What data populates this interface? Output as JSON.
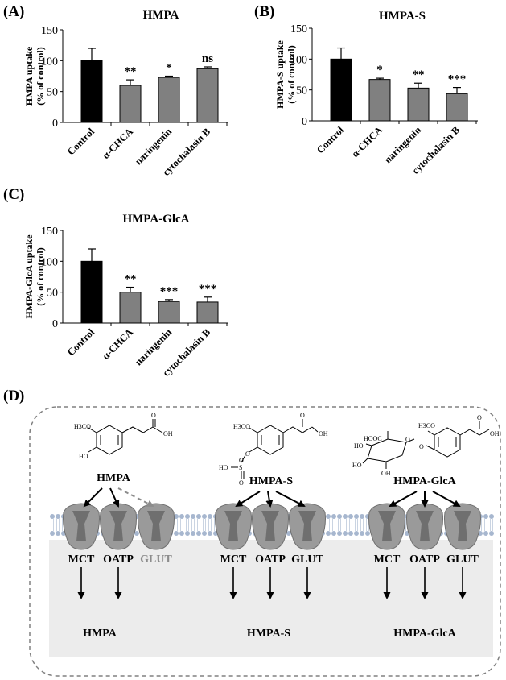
{
  "panels": {
    "A": "(A)",
    "B": "(B)",
    "C": "(C)",
    "D": "(D)"
  },
  "chart_data": [
    {
      "type": "bar",
      "title": "HMPA",
      "ylabel": "HMPA uptake",
      "ylabel2": "(% of control)",
      "ylim": [
        0,
        150
      ],
      "yticks": [
        0,
        50,
        100,
        150
      ],
      "categories": [
        "Control",
        "α-CHCA",
        "naringenin",
        "cytochalasin B"
      ],
      "values": [
        100,
        60,
        73,
        87
      ],
      "errors": [
        20,
        9,
        2,
        3
      ],
      "significance": [
        "",
        "**",
        "*",
        "ns"
      ],
      "colors": [
        "#000000",
        "#808080",
        "#808080",
        "#808080"
      ]
    },
    {
      "type": "bar",
      "title": "HMPA-S",
      "ylabel": "HMPA-S uptake",
      "ylabel2": "(% of control)",
      "ylim": [
        0,
        150
      ],
      "yticks": [
        0,
        50,
        100,
        150
      ],
      "categories": [
        "Control",
        "α-CHCA",
        "naringenin",
        "cytochalasin B"
      ],
      "values": [
        100,
        67,
        53,
        44
      ],
      "errors": [
        18,
        2,
        8,
        10
      ],
      "significance": [
        "",
        "*",
        "**",
        "***"
      ],
      "colors": [
        "#000000",
        "#808080",
        "#808080",
        "#808080"
      ]
    },
    {
      "type": "bar",
      "title": "HMPA-GlcA",
      "ylabel": "HMPA-GlcA uptake",
      "ylabel2": "(% of control)",
      "ylim": [
        0,
        150
      ],
      "yticks": [
        0,
        50,
        100,
        150
      ],
      "categories": [
        "Control",
        "α-CHCA",
        "naringenin",
        "cytochalasin B"
      ],
      "values": [
        100,
        50,
        35,
        34
      ],
      "errors": [
        20,
        8,
        3,
        8
      ],
      "significance": [
        "",
        "**",
        "***",
        "***"
      ],
      "colors": [
        "#000000",
        "#808080",
        "#808080",
        "#808080"
      ]
    }
  ],
  "diagram": {
    "compounds": [
      {
        "name": "HMPA",
        "structure_labels": [
          "H3CO",
          "HO",
          "O",
          "OH"
        ],
        "transporters": [
          {
            "label": "MCT",
            "active": true
          },
          {
            "label": "OATP",
            "active": true
          },
          {
            "label": "GLUT",
            "active": false
          }
        ],
        "product": "HMPA"
      },
      {
        "name": "HMPA-S",
        "structure_labels": [
          "H3CO",
          "HO",
          "S",
          "O",
          "O",
          "O",
          "O",
          "OH"
        ],
        "transporters": [
          {
            "label": "MCT",
            "active": true
          },
          {
            "label": "OATP",
            "active": true
          },
          {
            "label": "GLUT",
            "active": true
          }
        ],
        "product": "HMPA-S"
      },
      {
        "name": "HMPA-GlcA",
        "structure_labels": [
          "HOOC",
          "HO",
          "HO",
          "OH",
          "O",
          "O",
          "H3CO",
          "O",
          "OH"
        ],
        "transporters": [
          {
            "label": "MCT",
            "active": true
          },
          {
            "label": "OATP",
            "active": true
          },
          {
            "label": "GLUT",
            "active": true
          }
        ],
        "product": "HMPA-GlcA"
      }
    ],
    "colors": {
      "transporter_fill": "#9a9a9a",
      "transporter_inner": "#6f6f6f",
      "membrane_head": "#a7b7cf",
      "cytoplasm": "#ececec",
      "inactive": "#8c8c8c"
    }
  }
}
